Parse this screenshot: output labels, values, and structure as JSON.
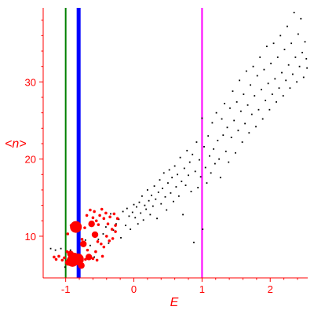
{
  "chart_data": {
    "type": "scatter",
    "xlabel": "E",
    "ylabel": "<n>",
    "xlim": [
      -1.33,
      2.55
    ],
    "ylim": [
      4.6,
      39.6
    ],
    "x_ticks": [
      {
        "value": -1,
        "label": "-1"
      },
      {
        "value": 0,
        "label": "0"
      },
      {
        "value": 1,
        "label": "1"
      },
      {
        "value": 2,
        "label": "2"
      }
    ],
    "y_ticks": [
      {
        "value": 10,
        "label": "10"
      },
      {
        "value": 20,
        "label": "20"
      },
      {
        "value": 30,
        "label": "30"
      }
    ],
    "axis_color": "#ff0000",
    "vertical_lines": [
      {
        "x": -1.0,
        "color": "#008000",
        "weight": "thin"
      },
      {
        "x": -0.81,
        "color": "#0000ff",
        "weight": "thick"
      },
      {
        "x": 1.0,
        "color": "#ff00ff",
        "weight": "medium"
      }
    ],
    "series": [
      {
        "color": "#000000",
        "points": [
          [
            -1.22,
            8.4
          ],
          [
            -1.15,
            8.2
          ],
          [
            -1.07,
            8.4
          ],
          [
            -1.01,
            6.0
          ],
          [
            -0.93,
            8.2
          ],
          [
            -0.71,
            9.5
          ],
          [
            -0.64,
            8.8
          ],
          [
            -0.58,
            7.3
          ],
          [
            -0.52,
            9.6
          ],
          [
            -0.45,
            10.3
          ],
          [
            -0.41,
            11.2
          ],
          [
            -0.37,
            9.1
          ],
          [
            -0.34,
            12.9
          ],
          [
            -0.3,
            10.8
          ],
          [
            -0.26,
            11.6
          ],
          [
            -0.22,
            12.2
          ],
          [
            -0.19,
            9.8
          ],
          [
            -0.16,
            13.2
          ],
          [
            -0.12,
            11.4
          ],
          [
            -0.1,
            13.6
          ],
          [
            -0.07,
            12.6
          ],
          [
            -0.05,
            10.9
          ],
          [
            -0.02,
            13.1
          ],
          [
            0.0,
            14.1
          ],
          [
            0.02,
            12.4
          ],
          [
            0.04,
            13.8
          ],
          [
            0.06,
            11.6
          ],
          [
            0.08,
            14.4
          ],
          [
            0.1,
            13.0
          ],
          [
            0.12,
            15.2
          ],
          [
            0.14,
            12.1
          ],
          [
            0.16,
            14.0
          ],
          [
            0.18,
            13.5
          ],
          [
            0.2,
            16.0
          ],
          [
            0.22,
            14.6
          ],
          [
            0.24,
            12.8
          ],
          [
            0.26,
            15.3
          ],
          [
            0.28,
            13.9
          ],
          [
            0.3,
            16.5
          ],
          [
            0.32,
            14.8
          ],
          [
            0.34,
            12.3
          ],
          [
            0.36,
            15.7
          ],
          [
            0.38,
            17.3
          ],
          [
            0.4,
            14.2
          ],
          [
            0.42,
            16.2
          ],
          [
            0.44,
            18.2
          ],
          [
            0.46,
            15.1
          ],
          [
            0.48,
            13.4
          ],
          [
            0.5,
            16.9
          ],
          [
            0.52,
            18.6
          ],
          [
            0.54,
            15.6
          ],
          [
            0.56,
            17.6
          ],
          [
            0.58,
            14.5
          ],
          [
            0.6,
            19.1
          ],
          [
            0.62,
            16.4
          ],
          [
            0.64,
            18.0
          ],
          [
            0.66,
            15.2
          ],
          [
            0.68,
            20.2
          ],
          [
            0.7,
            17.1
          ],
          [
            0.72,
            12.8
          ],
          [
            0.74,
            18.8
          ],
          [
            0.76,
            16.6
          ],
          [
            0.78,
            21.1
          ],
          [
            0.8,
            17.9
          ],
          [
            0.82,
            19.6
          ],
          [
            0.84,
            15.8
          ],
          [
            0.86,
            20.6
          ],
          [
            0.88,
            9.2
          ],
          [
            0.9,
            18.4
          ],
          [
            0.92,
            22.2
          ],
          [
            0.94,
            16.3
          ],
          [
            0.96,
            19.9
          ],
          [
            0.98,
            17.7
          ],
          [
            1.0,
            25.3
          ],
          [
            1.01,
            10.9
          ],
          [
            1.03,
            21.6
          ],
          [
            1.05,
            18.9
          ],
          [
            1.07,
            16.9
          ],
          [
            1.09,
            23.0
          ],
          [
            1.11,
            20.4
          ],
          [
            1.13,
            18.2
          ],
          [
            1.15,
            24.7
          ],
          [
            1.17,
            21.3
          ],
          [
            1.19,
            19.4
          ],
          [
            1.21,
            26.0
          ],
          [
            1.23,
            22.4
          ],
          [
            1.25,
            20.0
          ],
          [
            1.27,
            17.6
          ],
          [
            1.29,
            25.2
          ],
          [
            1.31,
            23.1
          ],
          [
            1.33,
            27.2
          ],
          [
            1.35,
            21.0
          ],
          [
            1.37,
            24.1
          ],
          [
            1.39,
            19.6
          ],
          [
            1.41,
            26.6
          ],
          [
            1.43,
            22.8
          ],
          [
            1.45,
            28.8
          ],
          [
            1.47,
            25.0
          ],
          [
            1.49,
            20.8
          ],
          [
            1.51,
            27.4
          ],
          [
            1.53,
            23.7
          ],
          [
            1.55,
            30.2
          ],
          [
            1.57,
            26.2
          ],
          [
            1.59,
            22.2
          ],
          [
            1.61,
            28.4
          ],
          [
            1.63,
            24.6
          ],
          [
            1.65,
            31.4
          ],
          [
            1.67,
            27.0
          ],
          [
            1.69,
            23.4
          ],
          [
            1.71,
            29.6
          ],
          [
            1.73,
            25.8
          ],
          [
            1.75,
            32.0
          ],
          [
            1.77,
            28.2
          ],
          [
            1.79,
            24.2
          ],
          [
            1.81,
            30.8
          ],
          [
            1.83,
            26.4
          ],
          [
            1.85,
            33.2
          ],
          [
            1.87,
            29.0
          ],
          [
            1.89,
            25.2
          ],
          [
            1.91,
            31.6
          ],
          [
            1.93,
            27.6
          ],
          [
            1.95,
            34.6
          ],
          [
            1.97,
            29.8
          ],
          [
            1.99,
            26.4
          ],
          [
            2.01,
            32.4
          ],
          [
            2.03,
            28.4
          ],
          [
            2.05,
            35.0
          ],
          [
            2.07,
            30.4
          ],
          [
            2.09,
            27.4
          ],
          [
            2.11,
            33.2
          ],
          [
            2.13,
            29.2
          ],
          [
            2.15,
            36.0
          ],
          [
            2.17,
            31.2
          ],
          [
            2.19,
            28.2
          ],
          [
            2.21,
            34.2
          ],
          [
            2.23,
            30.2
          ],
          [
            2.25,
            37.2
          ],
          [
            2.27,
            32.2
          ],
          [
            2.29,
            29.2
          ],
          [
            2.31,
            35.0
          ],
          [
            2.33,
            31.0
          ],
          [
            2.35,
            39.0
          ],
          [
            2.37,
            33.2
          ],
          [
            2.39,
            30.0
          ],
          [
            2.41,
            36.2
          ],
          [
            2.43,
            32.0
          ],
          [
            2.45,
            38.2
          ],
          [
            2.47,
            33.8
          ],
          [
            2.49,
            30.6
          ],
          [
            2.51,
            35.2
          ],
          [
            2.53,
            33.0
          ],
          [
            2.54,
            31.8
          ]
        ]
      },
      {
        "color": "#ff0000",
        "points": [
          [
            -0.88,
            7.1,
            "large"
          ],
          [
            -0.82,
            7.0,
            "large"
          ],
          [
            -0.9,
            6.8,
            "large"
          ],
          [
            -0.85,
            11.2,
            "large"
          ],
          [
            -0.74,
            9.0,
            "medium"
          ],
          [
            -0.77,
            6.2,
            "medium"
          ],
          [
            -0.93,
            7.7,
            "medium"
          ],
          [
            -0.96,
            6.6,
            "medium"
          ],
          [
            -0.66,
            7.3,
            "medium"
          ],
          [
            -0.62,
            11.6,
            "medium"
          ],
          [
            -0.57,
            10.2,
            "medium"
          ],
          [
            -0.97,
            10.3,
            "small"
          ],
          [
            -1.02,
            7.2,
            "small"
          ],
          [
            -1.05,
            6.9,
            "small"
          ],
          [
            -1.1,
            7.4,
            "small"
          ],
          [
            -1.14,
            7.0,
            "small"
          ],
          [
            -1.17,
            7.3,
            "small"
          ],
          [
            -0.92,
            11.4,
            "small"
          ],
          [
            -0.8,
            11.0,
            "small"
          ],
          [
            -0.72,
            11.1,
            "small"
          ],
          [
            -0.69,
            12.7,
            "small"
          ],
          [
            -0.64,
            13.4,
            "small"
          ],
          [
            -0.6,
            12.4,
            "small"
          ],
          [
            -0.58,
            13.2,
            "small"
          ],
          [
            -0.55,
            12.0,
            "small"
          ],
          [
            -0.52,
            11.5,
            "small"
          ],
          [
            -0.5,
            12.7,
            "small"
          ],
          [
            -0.47,
            13.5,
            "small"
          ],
          [
            -0.44,
            12.3,
            "small"
          ],
          [
            -0.41,
            13.0,
            "small"
          ],
          [
            -0.38,
            11.6,
            "small"
          ],
          [
            -0.35,
            12.5,
            "small"
          ],
          [
            -0.32,
            10.9,
            "small"
          ],
          [
            -0.29,
            12.9,
            "small"
          ],
          [
            -0.27,
            11.4,
            "small"
          ],
          [
            -0.24,
            12.3,
            "small"
          ],
          [
            -0.56,
            8.0,
            "small"
          ],
          [
            -0.53,
            9.3,
            "small"
          ],
          [
            -0.48,
            9.0,
            "small"
          ],
          [
            -0.44,
            8.6,
            "small"
          ],
          [
            -0.4,
            10.0,
            "small"
          ],
          [
            -0.36,
            9.4,
            "small"
          ],
          [
            -0.31,
            9.7,
            "small"
          ],
          [
            -0.27,
            10.6,
            "small"
          ],
          [
            -0.6,
            7.1,
            "small"
          ],
          [
            -0.54,
            6.9,
            "small"
          ],
          [
            -0.46,
            7.4,
            "small"
          ],
          [
            -0.71,
            7.0,
            "small"
          ],
          [
            -0.68,
            8.2,
            "small"
          ],
          [
            -0.76,
            9.6,
            "small"
          ],
          [
            -0.98,
            8.0,
            "small"
          ]
        ]
      }
    ]
  }
}
